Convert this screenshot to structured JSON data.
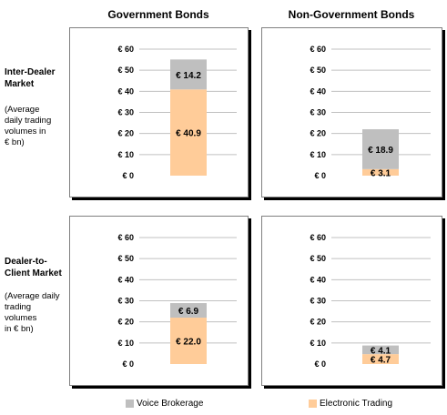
{
  "columns": [
    "Government Bonds",
    "Non-Government Bonds"
  ],
  "rows": [
    {
      "title": [
        "Inter-Dealer",
        "Market"
      ],
      "note": [
        "(Average",
        "daily trading",
        "volumes in",
        "€ bn)"
      ]
    },
    {
      "title": [
        "Dealer-to-",
        "Client Market"
      ],
      "note": [
        "(Average daily",
        "trading",
        "volumes",
        "in € bn)"
      ]
    }
  ],
  "legend": [
    {
      "label": "Voice Brokerage",
      "color": "#bfbfbf"
    },
    {
      "label": "Electronic Trading",
      "color": "#ffcc99"
    }
  ],
  "chart_data": [
    {
      "type": "bar",
      "stacked": true,
      "ylim": [
        0,
        60
      ],
      "yticks": [
        "€ 0",
        "€ 10",
        "€ 20",
        "€ 30",
        "€ 40",
        "€ 50",
        "€ 60"
      ],
      "series": [
        {
          "name": "Electronic Trading",
          "values": [
            40.9
          ],
          "labels": [
            "€ 40.9"
          ]
        },
        {
          "name": "Voice Brokerage",
          "values": [
            14.2
          ],
          "labels": [
            "€ 14.2"
          ]
        }
      ]
    },
    {
      "type": "bar",
      "stacked": true,
      "ylim": [
        0,
        60
      ],
      "yticks": [
        "€ 0",
        "€ 10",
        "€ 20",
        "€ 30",
        "€ 40",
        "€ 50",
        "€ 60"
      ],
      "series": [
        {
          "name": "Electronic Trading",
          "values": [
            3.1
          ],
          "labels": [
            "€ 3.1"
          ]
        },
        {
          "name": "Voice Brokerage",
          "values": [
            18.9
          ],
          "labels": [
            "€ 18.9"
          ]
        }
      ]
    },
    {
      "type": "bar",
      "stacked": true,
      "ylim": [
        0,
        60
      ],
      "yticks": [
        "€ 0",
        "€ 10",
        "€ 20",
        "€ 30",
        "€ 40",
        "€ 50",
        "€ 60"
      ],
      "series": [
        {
          "name": "Electronic Trading",
          "values": [
            22.0
          ],
          "labels": [
            "€ 22.0"
          ]
        },
        {
          "name": "Voice Brokerage",
          "values": [
            6.9
          ],
          "labels": [
            "€ 6.9"
          ]
        }
      ]
    },
    {
      "type": "bar",
      "stacked": true,
      "ylim": [
        0,
        60
      ],
      "yticks": [
        "€ 0",
        "€ 10",
        "€ 20",
        "€ 30",
        "€ 40",
        "€ 50",
        "€ 60"
      ],
      "series": [
        {
          "name": "Electronic Trading",
          "values": [
            4.7
          ],
          "labels": [
            "€ 4.7"
          ]
        },
        {
          "name": "Voice Brokerage",
          "values": [
            4.1
          ],
          "labels": [
            "€ 4.1"
          ]
        }
      ]
    }
  ]
}
